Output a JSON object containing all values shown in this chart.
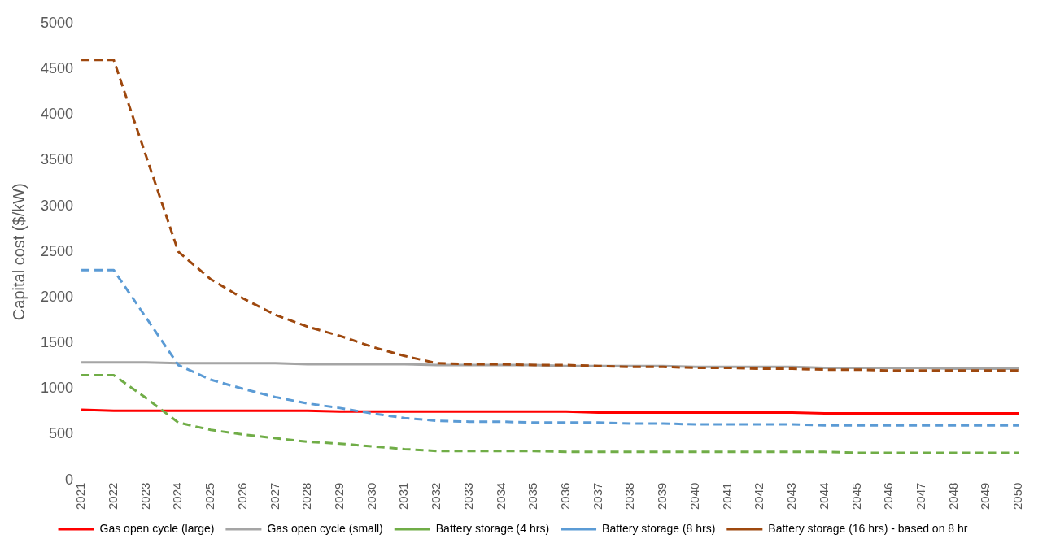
{
  "chart_data": {
    "type": "line",
    "ylabel": "Capital cost ($/kW)",
    "categories": [
      "2021",
      "2022",
      "2023",
      "2024",
      "2025",
      "2026",
      "2027",
      "2028",
      "2029",
      "2030",
      "2031",
      "2032",
      "2033",
      "2034",
      "2035",
      "2036",
      "2037",
      "2038",
      "2039",
      "2040",
      "2041",
      "2042",
      "2043",
      "2044",
      "2045",
      "2046",
      "2047",
      "2048",
      "2049",
      "2050"
    ],
    "ylim": [
      0,
      5000
    ],
    "yticks": [
      0,
      500,
      1000,
      1500,
      2000,
      2500,
      3000,
      3500,
      4000,
      4500,
      5000
    ],
    "grid": false,
    "legend": "bottom",
    "marker": "none",
    "series": [
      {
        "name": "Gas open cycle (large)",
        "color": "#ff0000",
        "line_style": "solid",
        "values": [
          770,
          760,
          760,
          760,
          760,
          760,
          760,
          760,
          750,
          750,
          750,
          750,
          750,
          750,
          750,
          750,
          740,
          740,
          740,
          740,
          740,
          740,
          740,
          730,
          730,
          730,
          730,
          730,
          730,
          730
        ]
      },
      {
        "name": "Gas open cycle (small)",
        "color": "#a5a5a5",
        "line_style": "solid",
        "values": [
          1290,
          1290,
          1290,
          1280,
          1280,
          1280,
          1280,
          1270,
          1270,
          1270,
          1270,
          1260,
          1260,
          1260,
          1260,
          1250,
          1250,
          1250,
          1250,
          1240,
          1240,
          1240,
          1240,
          1230,
          1230,
          1230,
          1230,
          1220,
          1220,
          1220
        ]
      },
      {
        "name": "Battery storage (4 hrs)",
        "color": "#70ad47",
        "line_style": "dashed",
        "values": [
          1150,
          1150,
          900,
          630,
          550,
          500,
          460,
          420,
          400,
          370,
          340,
          320,
          320,
          320,
          320,
          310,
          310,
          310,
          310,
          310,
          310,
          310,
          310,
          310,
          300,
          300,
          300,
          300,
          300,
          300
        ]
      },
      {
        "name": "Battery storage (8 hrs)",
        "color": "#5b9bd5",
        "line_style": "dashed",
        "values": [
          2300,
          2300,
          1780,
          1260,
          1100,
          1000,
          910,
          840,
          790,
          730,
          680,
          650,
          640,
          640,
          630,
          630,
          630,
          620,
          620,
          610,
          610,
          610,
          610,
          600,
          600,
          600,
          600,
          600,
          600,
          600
        ]
      },
      {
        "name": "Battery storage (16 hrs) - based on 8 hr",
        "color": "#9e480e",
        "line_style": "dashed",
        "values": [
          4600,
          4600,
          3550,
          2500,
          2200,
          1990,
          1810,
          1680,
          1580,
          1460,
          1360,
          1280,
          1270,
          1270,
          1260,
          1260,
          1250,
          1240,
          1240,
          1230,
          1230,
          1220,
          1220,
          1210,
          1210,
          1200,
          1200,
          1200,
          1200,
          1200
        ]
      }
    ]
  }
}
